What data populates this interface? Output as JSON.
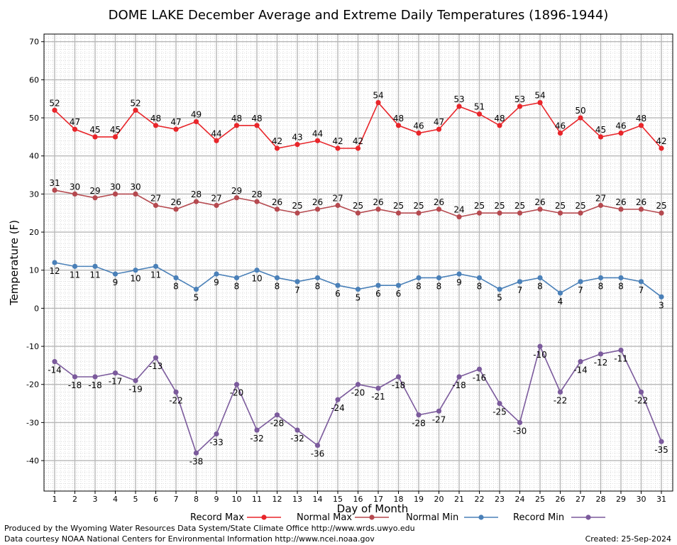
{
  "chart_data": {
    "type": "line",
    "title": "DOME LAKE December Average and Extreme Daily Temperatures (1896-1944)",
    "xlabel": "Day of Month",
    "ylabel": "Temperature (F)",
    "xlim": [
      1,
      31
    ],
    "ylim": [
      -48,
      72
    ],
    "x_ticks": [
      1,
      2,
      3,
      4,
      5,
      6,
      7,
      8,
      9,
      10,
      11,
      12,
      13,
      14,
      15,
      16,
      17,
      18,
      19,
      20,
      21,
      22,
      23,
      24,
      25,
      26,
      27,
      28,
      29,
      30,
      31
    ],
    "y_ticks": [
      -40,
      -30,
      -20,
      -10,
      0,
      10,
      20,
      30,
      40,
      50,
      60,
      70
    ],
    "grid": true,
    "legend_position": "bottom",
    "series": [
      {
        "name": "Record Max",
        "color": "#e8252a",
        "values": [
          52,
          47,
          45,
          45,
          52,
          48,
          47,
          49,
          44,
          48,
          48,
          42,
          43,
          44,
          42,
          42,
          54,
          48,
          46,
          47,
          53,
          51,
          48,
          53,
          54,
          46,
          50,
          45,
          46,
          48,
          42
        ]
      },
      {
        "name": "Normal Max",
        "color": "#b5494f",
        "values": [
          31,
          30,
          29,
          30,
          30,
          27,
          26,
          28,
          27,
          29,
          28,
          26,
          25,
          26,
          27,
          25,
          26,
          25,
          25,
          26,
          24,
          25,
          25,
          25,
          26,
          25,
          25,
          27,
          26,
          26,
          25
        ]
      },
      {
        "name": "Normal Min",
        "color": "#4a80b8",
        "values": [
          12,
          11,
          11,
          9,
          10,
          11,
          8,
          5,
          9,
          8,
          10,
          8,
          7,
          8,
          6,
          5,
          6,
          6,
          8,
          8,
          9,
          8,
          5,
          7,
          8,
          4,
          7,
          8,
          8,
          7,
          3
        ]
      },
      {
        "name": "Record Min",
        "color": "#7b5a9c",
        "values": [
          -14,
          -18,
          -18,
          -17,
          -19,
          -13,
          -22,
          -38,
          -33,
          -20,
          -32,
          -28,
          -32,
          -36,
          -24,
          -20,
          -21,
          -18,
          -28,
          -27,
          -18,
          -16,
          -25,
          -30,
          -10,
          -22,
          -14,
          -12,
          -11,
          -22,
          -35
        ]
      }
    ]
  },
  "footer": {
    "produced_by": "Produced by the Wyoming Water Resources Data System/State Climate Office http://www.wrds.uwyo.edu",
    "data_courtesy": "Data courtesy NOAA National Centers for Environmental Information http://www.ncei.noaa.gov",
    "created": "Created: 25-Sep-2024"
  }
}
